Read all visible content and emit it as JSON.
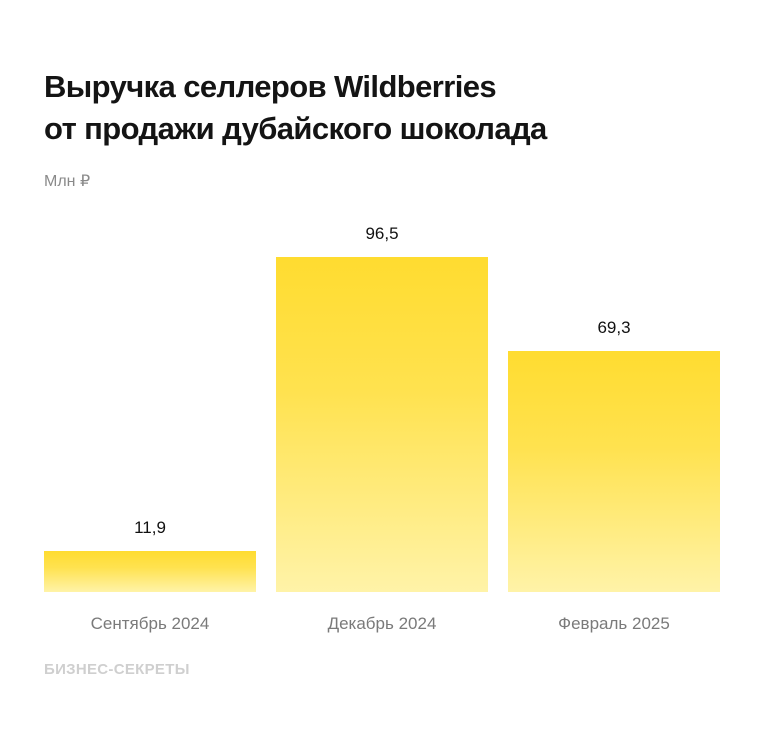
{
  "header": {
    "title_line1": "Выручка селлеров Wildberries",
    "title_line2": "от продажи дубайского шоколада",
    "unit": "Млн ₽"
  },
  "bars": [
    {
      "category": "Сентябрь 2024",
      "label": "11,9",
      "value": 11.9
    },
    {
      "category": "Декабрь 2024",
      "label": "96,5",
      "value": 96.5
    },
    {
      "category": "Февраль 2025",
      "label": "69,3",
      "value": 69.3
    }
  ],
  "footer": {
    "source": "БИЗНЕС-СЕКРЕТЫ"
  },
  "colors": {
    "bar_top": "#ffdc30",
    "bar_bottom": "#fff3a8",
    "title": "#141414",
    "muted": "#7a7a7a"
  },
  "chart_data": {
    "type": "bar",
    "title": "Выручка селлеров Wildberries от продажи дубайского шоколада",
    "subtitle": "Млн ₽",
    "categories": [
      "Сентябрь 2024",
      "Декабрь 2024",
      "Февраль 2025"
    ],
    "values": [
      11.9,
      96.5,
      69.3
    ],
    "xlabel": "",
    "ylabel": "Млн ₽",
    "ylim": [
      0,
      100
    ],
    "grid": false,
    "legend": null,
    "data_labels": [
      "11,9",
      "96,5",
      "69,3"
    ],
    "source": "БИЗНЕС-СЕКРЕТЫ"
  }
}
